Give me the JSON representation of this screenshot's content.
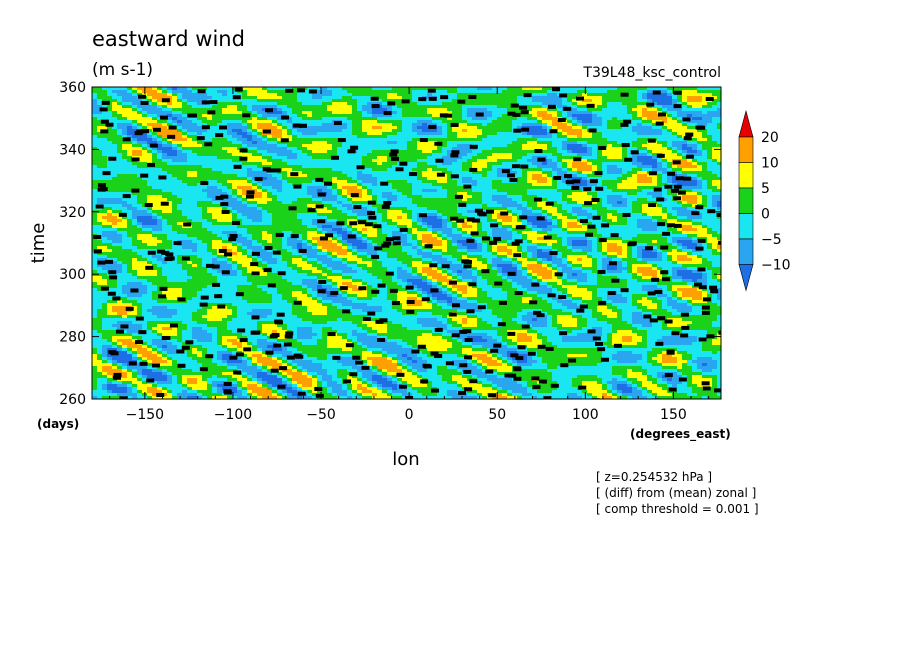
{
  "chart_data": {
    "type": "heatmap",
    "title": "eastward wind",
    "subtitle": "(m s-1)",
    "run_label": "T39L48_ksc_control",
    "xlabel": "lon",
    "x_unit": "(degrees_east)",
    "ylabel": "time",
    "y_unit": "(days)",
    "xlim": [
      -180,
      177
    ],
    "ylim": [
      260,
      360
    ],
    "x_ticks": [
      -150,
      -100,
      -50,
      0,
      50,
      100,
      150
    ],
    "x_tick_labels": [
      "−150",
      "−100",
      "−50",
      "0",
      "50",
      "100",
      "150"
    ],
    "y_ticks": [
      260,
      280,
      300,
      320,
      340,
      360
    ],
    "y_tick_labels": [
      "260",
      "280",
      "300",
      "320",
      "340",
      "360"
    ],
    "colorbar": {
      "levels": [
        -10,
        -5,
        0,
        5,
        10,
        20
      ],
      "labels": [
        "−10",
        "−5",
        "0",
        "5",
        "10",
        "20"
      ],
      "colors": [
        "#1e6ee6",
        "#2aa6f0",
        "#19e6f0",
        "#19d219",
        "#ffff00",
        "#ffa000",
        "#e60000"
      ],
      "extend": "both"
    },
    "notes": [
      "[ z=0.254532 hPa ]",
      "[ (diff) from (mean) zonal ]",
      "[ comp threshold = 0.001 ]"
    ],
    "description": "Longitude-time section of eastward wind anomaly (difference from zonal mean) with small black markers where significance threshold is met; field dominated by -5..5 m/s with eastward-tilted bands of 10-20 m/s."
  }
}
